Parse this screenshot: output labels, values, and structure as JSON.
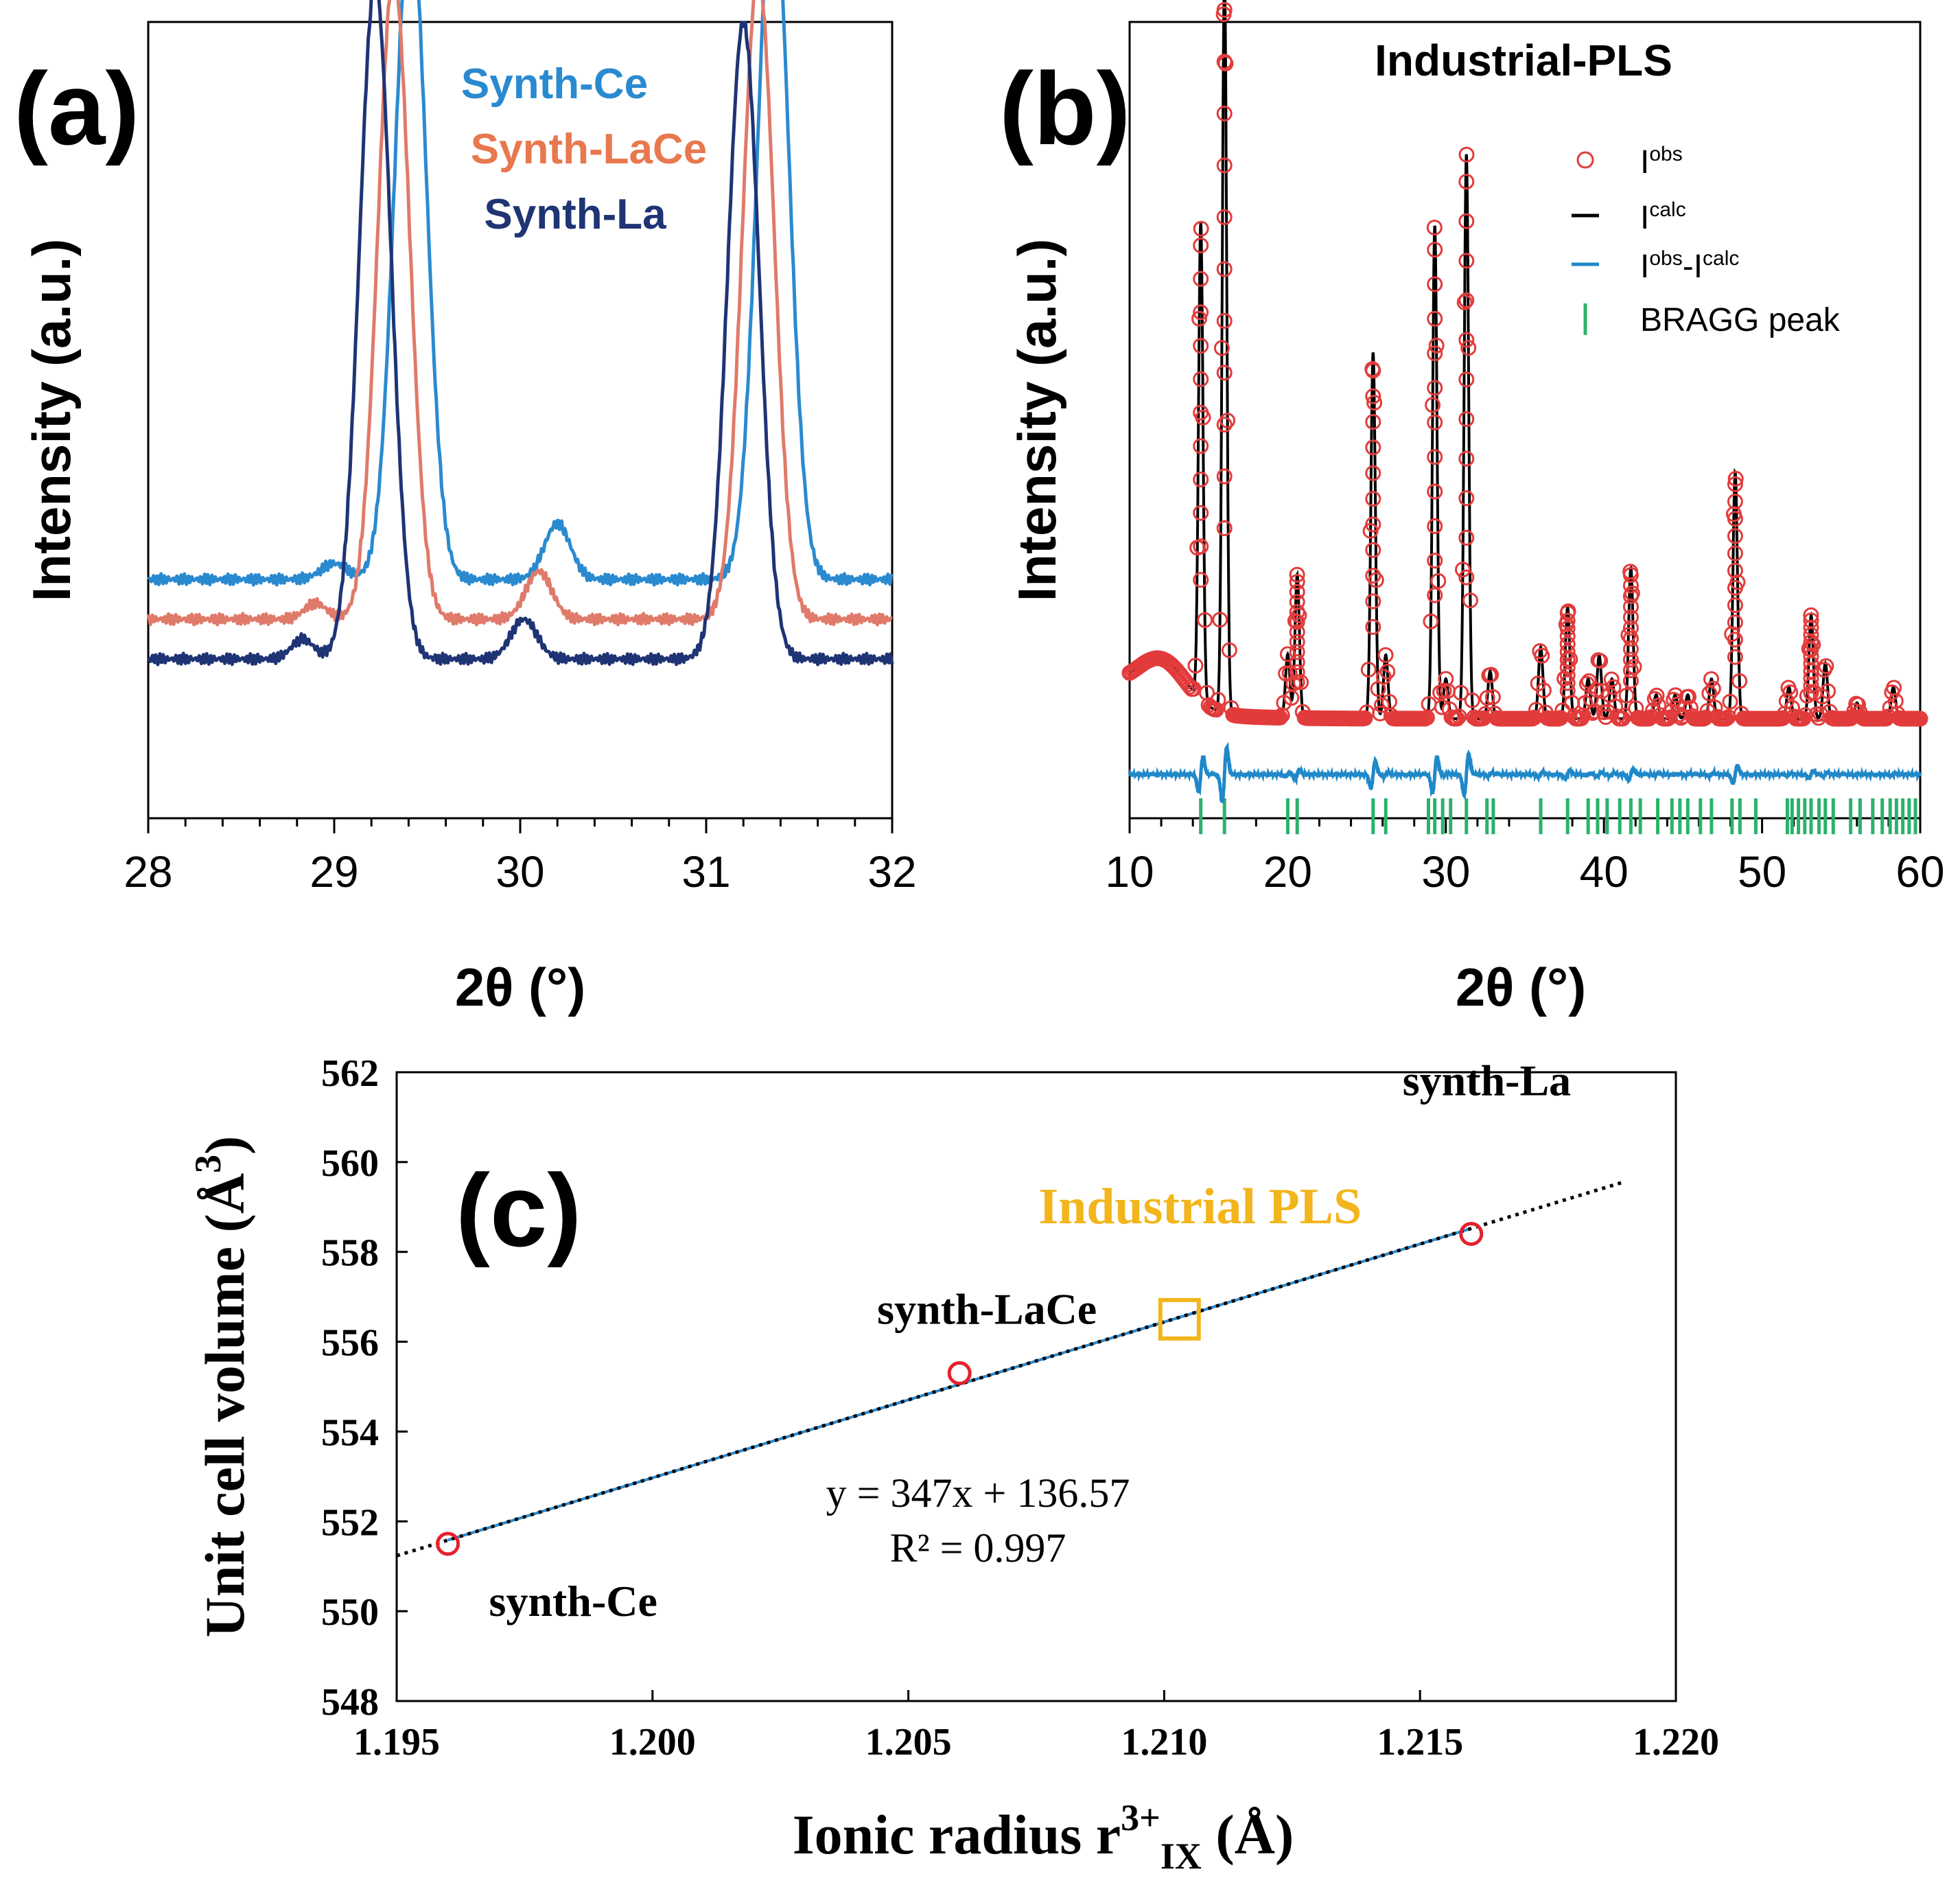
{
  "chart_data": [
    {
      "panel_label": "(a)",
      "type": "line",
      "title": "",
      "xlabel": "2θ (°)",
      "ylabel": "Intensity (a.u.)",
      "xlim": [
        28,
        32
      ],
      "x_ticks": [
        "28",
        "29",
        "30",
        "31",
        "32"
      ],
      "legend": [
        "Synth-Ce",
        "Synth-LaCe",
        "Synth-La"
      ],
      "series": [
        {
          "name": "Synth-Ce",
          "color": "#2a8ad0",
          "baseline": 0.3,
          "bumps": [
            [
              29.0,
              0.02,
              0.07
            ],
            [
              29.41,
              0.84,
              0.085
            ],
            [
              30.2,
              0.07,
              0.07
            ],
            [
              31.36,
              0.88,
              0.085
            ]
          ]
        },
        {
          "name": "Synth-LaCe",
          "color": "#e07a6a",
          "baseline": 0.25,
          "bumps": [
            [
              28.9,
              0.02,
              0.06
            ],
            [
              29.32,
              0.81,
              0.085
            ],
            [
              30.1,
              0.06,
              0.07
            ],
            [
              31.28,
              0.81,
              0.085
            ]
          ]
        },
        {
          "name": "Synth-La",
          "color": "#1f3474",
          "baseline": 0.2,
          "bumps": [
            [
              28.83,
              0.025,
              0.06
            ],
            [
              29.22,
              0.85,
              0.085
            ],
            [
              30.02,
              0.05,
              0.07
            ],
            [
              31.2,
              0.8,
              0.085
            ]
          ]
        }
      ]
    },
    {
      "panel_label": "(b)",
      "type": "line",
      "title": "Industrial-PLS",
      "xlabel": "2θ (°)",
      "ylabel": "Intensity (a.u.)",
      "xlim": [
        10,
        60
      ],
      "x_ticks": [
        "10",
        "20",
        "30",
        "40",
        "50",
        "60"
      ],
      "legend": [
        {
          "base": "I",
          "sup": "obs",
          "kind": "circle",
          "color": "#e23b3b"
        },
        {
          "base": "I",
          "sup": "calc",
          "kind": "line",
          "color": "#000000"
        },
        {
          "base": "I",
          "sup": "obs",
          "mid": "-I",
          "sup2": "calc",
          "kind": "line",
          "color": "#1f88c9"
        },
        {
          "text": "BRAGG peak",
          "kind": "tick",
          "color": "#2ab36a"
        }
      ],
      "peaks": [
        [
          14.5,
          0.6
        ],
        [
          16.0,
          0.93
        ],
        [
          20.0,
          0.08
        ],
        [
          20.6,
          0.18
        ],
        [
          25.4,
          0.46
        ],
        [
          26.2,
          0.08
        ],
        [
          29.3,
          0.62
        ],
        [
          30.0,
          0.05
        ],
        [
          31.3,
          0.71
        ],
        [
          32.8,
          0.06
        ],
        [
          36.0,
          0.09
        ],
        [
          37.7,
          0.14
        ],
        [
          39.0,
          0.05
        ],
        [
          39.7,
          0.08
        ],
        [
          40.5,
          0.05
        ],
        [
          41.7,
          0.19
        ],
        [
          43.3,
          0.03
        ],
        [
          44.5,
          0.03
        ],
        [
          45.3,
          0.03
        ],
        [
          46.8,
          0.05
        ],
        [
          48.3,
          0.31
        ],
        [
          51.7,
          0.04
        ],
        [
          53.1,
          0.13
        ],
        [
          54.0,
          0.07
        ],
        [
          56.0,
          0.02
        ],
        [
          58.3,
          0.04
        ]
      ],
      "bragg_positions": [
        14.5,
        16.0,
        20.0,
        20.6,
        25.4,
        26.2,
        28.9,
        29.3,
        29.8,
        30.3,
        31.3,
        32.6,
        33.0,
        36.0,
        37.7,
        39.0,
        39.6,
        40.2,
        41.0,
        41.7,
        42.3,
        43.4,
        44.3,
        44.8,
        45.3,
        46.1,
        46.8,
        48.1,
        48.6,
        49.6,
        51.6,
        51.9,
        52.3,
        52.7,
        53.1,
        53.6,
        54.0,
        54.5,
        55.6,
        56.2,
        57.0,
        57.6,
        58.1,
        58.5,
        58.9,
        59.3,
        59.7
      ]
    },
    {
      "panel_label": "(c)",
      "type": "scatter",
      "title": "",
      "xlabel_main": "Ionic radius r",
      "xlabel_sup": "3+",
      "xlabel_sub": "IX",
      "xlabel_unit": " (Å)",
      "ylabel_main": "Unit cell volume (Å",
      "ylabel_sup": "3",
      "ylabel_close": ")",
      "xlim": [
        1.195,
        1.22
      ],
      "ylim": [
        548,
        562
      ],
      "x_ticks": [
        "1.195",
        "1.200",
        "1.205",
        "1.210",
        "1.215",
        "1.220"
      ],
      "y_ticks": [
        "548",
        "550",
        "552",
        "554",
        "556",
        "558",
        "560",
        "562"
      ],
      "points": [
        {
          "label": "synth-Ce",
          "x": 1.196,
          "y": 551.5
        },
        {
          "label": "synth-LaCe",
          "x": 1.206,
          "y": 555.3
        },
        {
          "label": "synth-La",
          "x": 1.216,
          "y": 558.4
        }
      ],
      "highlight_point": {
        "label": "Industrial PLS",
        "x": 1.2103,
        "y": 556.5,
        "color": "#f2b51c"
      },
      "fit": {
        "slope": 347,
        "intercept": 136.57,
        "equation": "y = 347x + 136.57",
        "r2": "R² = 0.997",
        "x_range": [
          1.195,
          1.219
        ]
      }
    }
  ]
}
